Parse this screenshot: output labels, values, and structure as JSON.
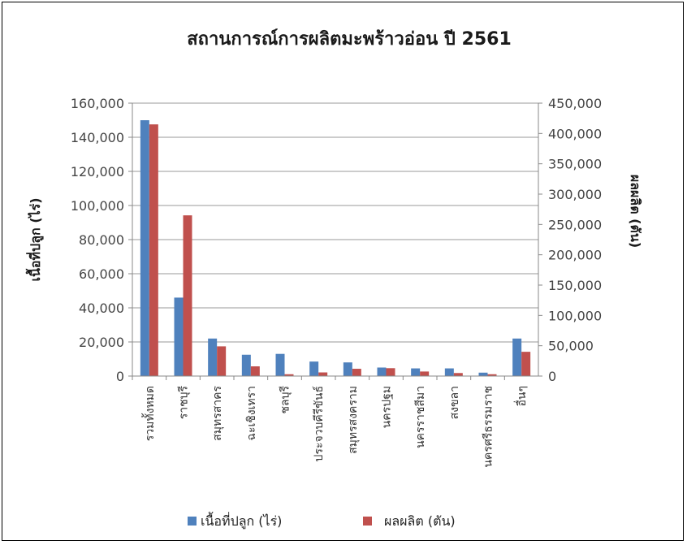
{
  "chart_data": {
    "type": "bar",
    "title": "สถานการณ์การผลิตมะพร้าวอ่อน ปี 2561",
    "ylabel": "เนื้อที่ปลูก (ไร่)",
    "y2label": "ผลผลิต (ตัน)",
    "ylim": [
      0,
      160000
    ],
    "y2lim": [
      0,
      450000
    ],
    "yticks": [
      "0",
      "20,000",
      "40,000",
      "60,000",
      "80,000",
      "100,000",
      "120,000",
      "140,000",
      "160,000"
    ],
    "y2ticks": [
      "0",
      "50,000",
      "100,000",
      "150,000",
      "200,000",
      "250,000",
      "300,000",
      "350,000",
      "400,000",
      "450,000"
    ],
    "grid": true,
    "legend": "bottom",
    "categories": [
      "รวมทั้งหมด",
      "ราชบุรี",
      "สมุทรสาคร",
      "ฉะเชิงเทรา",
      "ชลบุรี",
      "ประจวบคีรีขันธ์",
      "สมุทรสงคราม",
      "นครปฐม",
      "นครราชสีมา",
      "สงขลา",
      "นครศรีธรรมราช",
      "อื่นๆ"
    ],
    "series": [
      {
        "name": "เนื้อที่ปลูก (ไร่)",
        "axis": "left",
        "color": "#4f81bd",
        "values": [
          150000,
          46000,
          22000,
          12500,
          13000,
          8500,
          8000,
          5000,
          4500,
          4500,
          2000,
          22000
        ]
      },
      {
        "name": "ผลผลิต (ตัน)",
        "axis": "right",
        "color": "#c0504d",
        "values": [
          415000,
          265000,
          49000,
          16000,
          3000,
          6000,
          12000,
          13000,
          7500,
          5000,
          3000,
          40000
        ]
      }
    ]
  }
}
